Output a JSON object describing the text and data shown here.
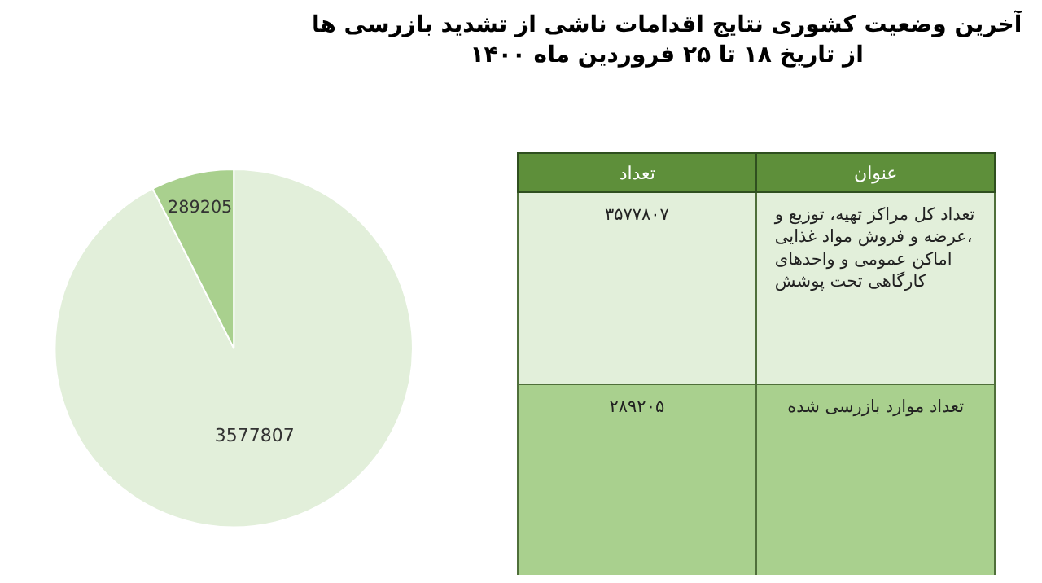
{
  "chart_data": [
    {
      "type": "pie",
      "title": "آخرین وضعیت کشوری نتایج اقدامات ناشی از تشدید بازرسی ها\nاز تاریخ ۱۸ تا ۲۵ فروردین ماه ۱۴۰۰",
      "categories": [
        null,
        null
      ],
      "values": [
        3577807,
        289205
      ],
      "colors": [
        "#e2efda",
        "#a9d08e"
      ],
      "data_labels": true
    },
    {
      "type": "other",
      "annotations": [
        "تعداد",
        "عنوان",
        "۳۵۷۷۸۰۷",
        "تعداد کل مراکز تهیه، توزیع و\nعرضه و فروش مواد غذایی،\nاماکن عمومی و واحدهای\nکارگاهی تحت پوشش",
        "۲۸۹۲۰۵",
        "تعداد موارد بازرسی شده"
      ]
    }
  ]
}
